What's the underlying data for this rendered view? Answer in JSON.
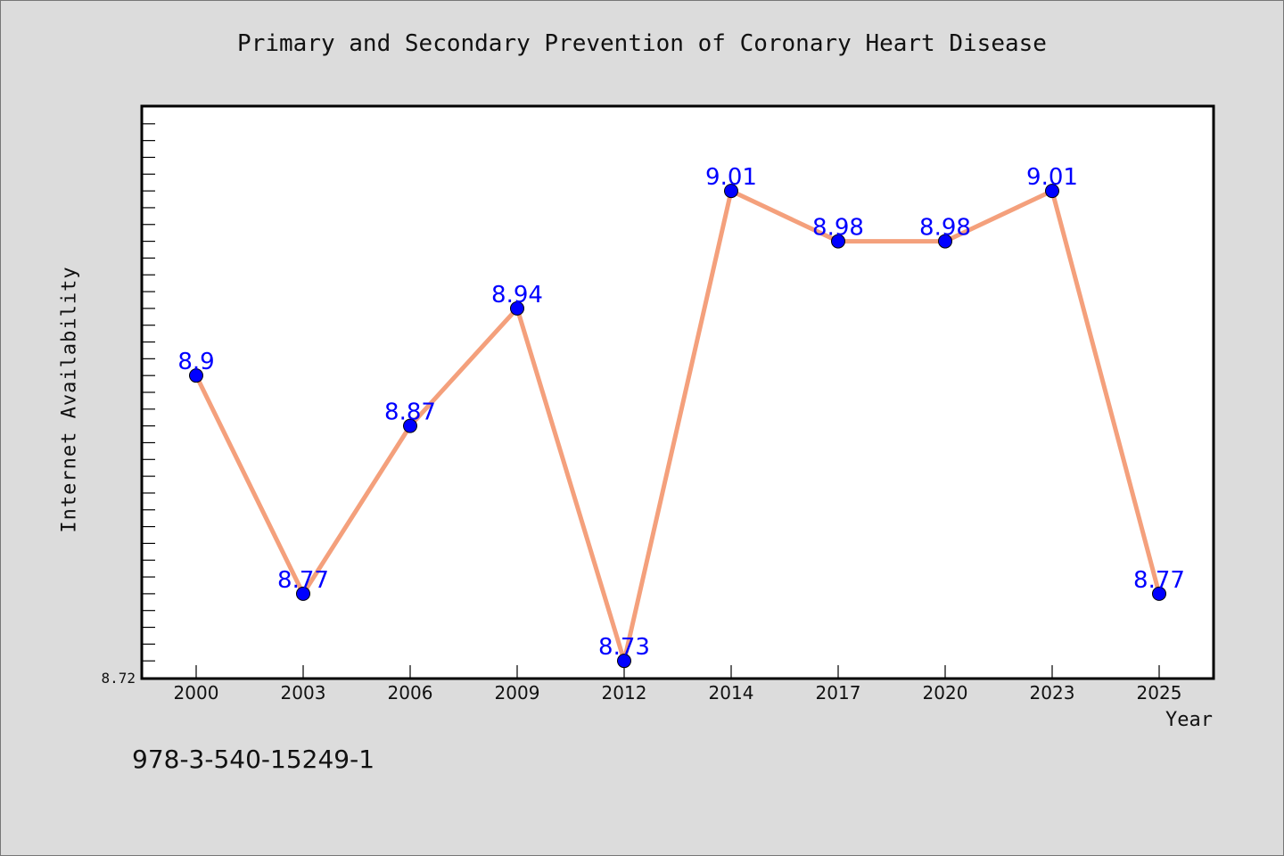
{
  "chart_data": {
    "type": "line",
    "title": "Primary and Secondary Prevention of Coronary Heart Disease",
    "xlabel": "Year",
    "ylabel": "Internet Availability",
    "categories": [
      "2000",
      "2003",
      "2006",
      "2009",
      "2012",
      "2014",
      "2017",
      "2020",
      "2023",
      "2025"
    ],
    "series": [
      {
        "values": [
          8.9,
          8.77,
          8.87,
          8.94,
          8.73,
          9.01,
          8.98,
          8.98,
          9.01,
          8.77
        ],
        "data_labels": [
          "8.9",
          "8.77",
          "8.87",
          "8.94",
          "8.73",
          "9.01",
          "8.98",
          "8.98",
          "9.01",
          "8.77"
        ]
      }
    ],
    "y_tick_labels": [
      "8.72"
    ],
    "ylim": [
      8.72,
      9.06
    ],
    "grid": false,
    "legend": "none",
    "line_color": "#f4a07c",
    "marker_color": "#0000ff",
    "label_color": "#0000ff"
  },
  "footer": {
    "code": "978-3-540-15249-1"
  }
}
